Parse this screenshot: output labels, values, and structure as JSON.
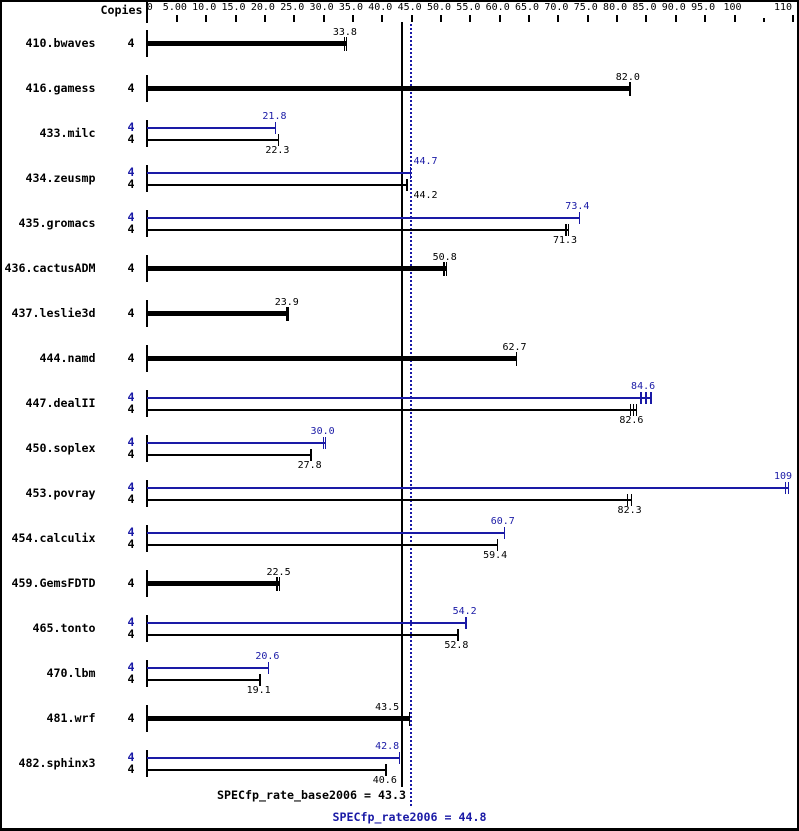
{
  "chart_data": {
    "type": "bar",
    "orientation": "horizontal",
    "copies_header": "Copies",
    "axis": {
      "min": 0,
      "max": 111,
      "origin_label": "0",
      "major_tick_step": 5,
      "ticks": [
        {
          "value": 5,
          "label": "5.00"
        },
        {
          "value": 10,
          "label": "10.0"
        },
        {
          "value": 15,
          "label": "15.0"
        },
        {
          "value": 20,
          "label": "20.0"
        },
        {
          "value": 25,
          "label": "25.0"
        },
        {
          "value": 30,
          "label": "30.0"
        },
        {
          "value": 35,
          "label": "35.0"
        },
        {
          "value": 40,
          "label": "40.0"
        },
        {
          "value": 45,
          "label": "45.0"
        },
        {
          "value": 50,
          "label": "50.0"
        },
        {
          "value": 55,
          "label": "55.0"
        },
        {
          "value": 60,
          "label": "60.0"
        },
        {
          "value": 65,
          "label": "65.0"
        },
        {
          "value": 70,
          "label": "70.0"
        },
        {
          "value": 75,
          "label": "75.0"
        },
        {
          "value": 80,
          "label": "80.0"
        },
        {
          "value": 85,
          "label": "85.0"
        },
        {
          "value": 90,
          "label": "90.0"
        },
        {
          "value": 95,
          "label": "95.0"
        },
        {
          "value": 100,
          "label": "100"
        },
        {
          "value": 105,
          "label": ""
        },
        {
          "value": 110,
          "label": "110"
        }
      ]
    },
    "colors": {
      "base": "#000000",
      "peak": "#1a1aa6",
      "background": "#ffffff"
    },
    "benchmarks": [
      {
        "name": "410.bwaves",
        "bars": [
          {
            "kind": "baseonly",
            "copies": "4",
            "value": 33.8,
            "label": "33.8",
            "run_ticks": [
              33.55,
              33.9
            ]
          }
        ]
      },
      {
        "name": "416.gamess",
        "bars": [
          {
            "kind": "baseonly",
            "copies": "4",
            "value": 82.0,
            "label": "82.0",
            "run_ticks": [
              82.2
            ]
          }
        ]
      },
      {
        "name": "433.milc",
        "bars": [
          {
            "kind": "peak",
            "copies": "4",
            "value": 21.8,
            "label": "21.8",
            "run_ticks": [
              21.82
            ]
          },
          {
            "kind": "base",
            "copies": "4",
            "value": 22.3,
            "label": "22.3",
            "run_ticks": [
              22.3
            ]
          }
        ]
      },
      {
        "name": "434.zeusmp",
        "bars": [
          {
            "kind": "peak",
            "copies": "4",
            "value": 44.7,
            "label": "44.7",
            "run_ticks": [
              44.8
            ]
          },
          {
            "kind": "base",
            "copies": "4",
            "value": 44.2,
            "label": "44.2",
            "run_ticks": [
              44.2
            ]
          }
        ]
      },
      {
        "name": "435.gromacs",
        "bars": [
          {
            "kind": "peak",
            "copies": "4",
            "value": 73.4,
            "label": "73.4",
            "run_ticks": [
              73.6
            ]
          },
          {
            "kind": "base",
            "copies": "4",
            "value": 71.3,
            "label": "71.3",
            "run_ticks": [
              71.3,
              71.7
            ]
          }
        ]
      },
      {
        "name": "436.cactusADM",
        "bars": [
          {
            "kind": "baseonly",
            "copies": "4",
            "value": 50.8,
            "label": "50.8",
            "run_ticks": [
              50.5,
              50.95
            ]
          }
        ]
      },
      {
        "name": "437.leslie3d",
        "bars": [
          {
            "kind": "baseonly",
            "copies": "4",
            "value": 23.9,
            "label": "23.9",
            "run_ticks": [
              23.8,
              24.05
            ]
          }
        ]
      },
      {
        "name": "444.namd",
        "bars": [
          {
            "kind": "baseonly",
            "copies": "4",
            "value": 62.7,
            "label": "62.7",
            "run_ticks": [
              62.9
            ]
          }
        ]
      },
      {
        "name": "447.dealII",
        "bars": [
          {
            "kind": "peak",
            "copies": "4",
            "value": 84.6,
            "label": "84.6",
            "run_ticks": [
              84.1,
              84.9,
              85.8
            ]
          },
          {
            "kind": "base",
            "copies": "4",
            "value": 82.6,
            "label": "82.6",
            "run_ticks": [
              82.3,
              82.8,
              83.3
            ]
          }
        ]
      },
      {
        "name": "450.soplex",
        "bars": [
          {
            "kind": "peak",
            "copies": "4",
            "value": 30.0,
            "label": "30.0",
            "run_ticks": [
              30.0,
              30.35
            ]
          },
          {
            "kind": "base",
            "copies": "4",
            "value": 27.8,
            "label": "27.8",
            "run_ticks": [
              27.85
            ]
          }
        ]
      },
      {
        "name": "453.povray",
        "bars": [
          {
            "kind": "peak",
            "copies": "4",
            "value": 109,
            "label": "109",
            "run_ticks": [
              108.7,
              109.2
            ]
          },
          {
            "kind": "base",
            "copies": "4",
            "value": 82.3,
            "label": "82.3",
            "run_ticks": [
              81.8,
              82.45
            ]
          }
        ]
      },
      {
        "name": "454.calculix",
        "bars": [
          {
            "kind": "peak",
            "copies": "4",
            "value": 60.7,
            "label": "60.7",
            "run_ticks": [
              60.85
            ]
          },
          {
            "kind": "base",
            "copies": "4",
            "value": 59.4,
            "label": "59.4",
            "run_ticks": [
              59.6
            ]
          }
        ]
      },
      {
        "name": "459.GemsFDTD",
        "bars": [
          {
            "kind": "baseonly",
            "copies": "4",
            "value": 22.5,
            "label": "22.5",
            "run_ticks": [
              22.1,
              22.5
            ]
          }
        ]
      },
      {
        "name": "465.tonto",
        "bars": [
          {
            "kind": "peak",
            "copies": "4",
            "value": 54.2,
            "label": "54.2",
            "run_ticks": [
              54.25
            ]
          },
          {
            "kind": "base",
            "copies": "4",
            "value": 52.8,
            "label": "52.8",
            "run_ticks": [
              52.9
            ]
          }
        ]
      },
      {
        "name": "470.lbm",
        "bars": [
          {
            "kind": "peak",
            "copies": "4",
            "value": 20.6,
            "label": "20.6",
            "run_ticks": [
              20.6
            ]
          },
          {
            "kind": "base",
            "copies": "4",
            "value": 19.1,
            "label": "19.1",
            "run_ticks": [
              19.2
            ]
          }
        ]
      },
      {
        "name": "481.wrf",
        "bars": [
          {
            "kind": "baseonly",
            "copies": "4",
            "value": 43.5,
            "label": "43.5",
            "run_ticks": [
              44.6
            ]
          }
        ]
      },
      {
        "name": "482.sphinx3",
        "bars": [
          {
            "kind": "peak",
            "copies": "4",
            "value": 42.8,
            "label": "42.8",
            "run_ticks": [
              42.9
            ]
          },
          {
            "kind": "base",
            "copies": "4",
            "value": 40.6,
            "label": "40.6",
            "run_ticks": [
              40.6
            ]
          }
        ]
      }
    ],
    "means": {
      "base": {
        "value": 43.3,
        "label": "SPECfp_rate_base2006 = 43.3",
        "style": "solid"
      },
      "peak": {
        "value": 44.8,
        "label": "SPECfp_rate2006 = 44.8",
        "style": "dotted"
      }
    }
  }
}
